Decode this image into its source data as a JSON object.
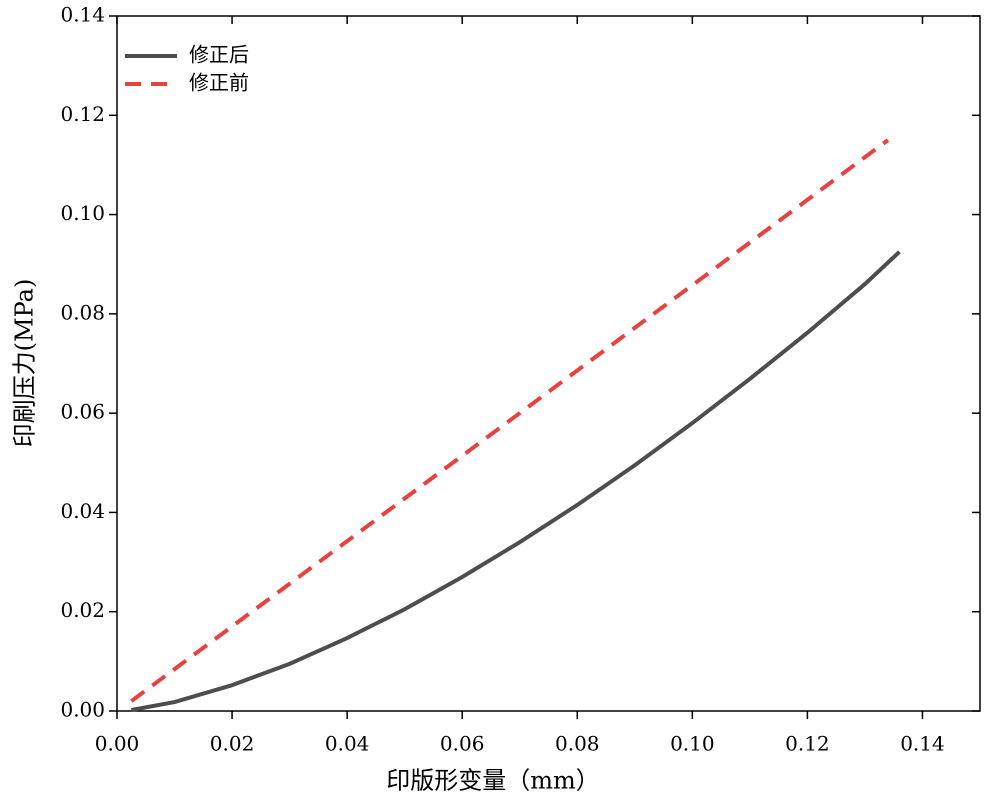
{
  "chart_data": {
    "type": "line",
    "xlabel": "印版形变量（mm）",
    "ylabel": "印刷压力(MPa)",
    "xlim": [
      0,
      0.15
    ],
    "ylim": [
      0,
      0.14
    ],
    "xticks": [
      {
        "value": 0,
        "label": "0.00"
      },
      0.02,
      0.04,
      0.06,
      0.08,
      {
        "value": 0.1,
        "label": "0.10"
      },
      0.12,
      0.14
    ],
    "yticks": [
      {
        "value": 0,
        "label": "0.00"
      },
      0.02,
      0.04,
      0.06,
      0.08,
      {
        "value": 0.1,
        "label": "0.10"
      },
      0.12,
      0.14
    ],
    "legend": "upper left",
    "series": [
      {
        "name": "修正后",
        "color": "#4d4d4d",
        "dash": "solid",
        "x": [
          0.0025,
          0.01,
          0.02,
          0.03,
          0.04,
          0.05,
          0.06,
          0.07,
          0.08,
          0.09,
          0.1,
          0.11,
          0.12,
          0.13,
          0.136
        ],
        "values": [
          0.0002,
          0.0018,
          0.0052,
          0.0095,
          0.0147,
          0.0205,
          0.027,
          0.034,
          0.0415,
          0.0495,
          0.058,
          0.0669,
          0.0762,
          0.086,
          0.0925
        ]
      },
      {
        "name": "修正前",
        "color": "#e8413f",
        "dash": "dashed",
        "x": [
          0.0025,
          0.134
        ],
        "values": [
          0.002,
          0.115
        ]
      }
    ]
  }
}
